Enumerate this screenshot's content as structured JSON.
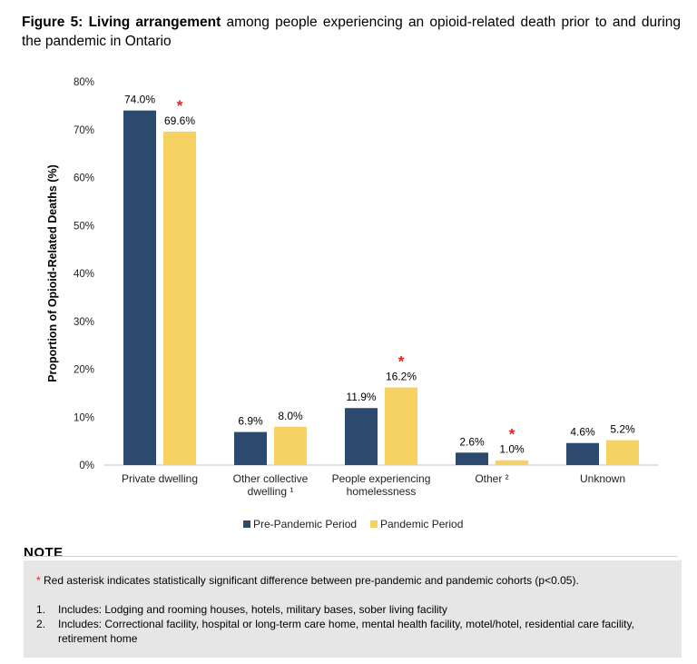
{
  "title": {
    "figure": "Figure 5:",
    "bold": "Living arrangement",
    "rest": "among people experiencing an opioid-related death prior to and during the pandemic in Ontario"
  },
  "colors": {
    "pre": "#2b4a6e",
    "pandemic": "#f5d262",
    "asterisk": "#e02020"
  },
  "chart_data": {
    "type": "bar",
    "categories": [
      [
        "Private dwelling"
      ],
      [
        "Other collective",
        "dwelling ¹"
      ],
      [
        "People experiencing",
        "homelessness"
      ],
      [
        "Other ²"
      ],
      [
        "Unknown"
      ]
    ],
    "series": [
      {
        "name": "Pre-Pandemic Period",
        "values": [
          74.0,
          6.9,
          11.9,
          2.6,
          4.6
        ],
        "labels": [
          "74.0%",
          "6.9%",
          "11.9%",
          "2.6%",
          "4.6%"
        ]
      },
      {
        "name": "Pandemic Period",
        "values": [
          69.6,
          8.0,
          16.2,
          1.0,
          5.2
        ],
        "labels": [
          "69.6%",
          "8.0%",
          "16.2%",
          "1.0%",
          "5.2%"
        ]
      }
    ],
    "significant": [
      true,
      false,
      true,
      true,
      false
    ],
    "asterisk": "*",
    "ylabel": "Proportion of Opioid-Related Deaths (%)",
    "ylim": [
      0,
      80
    ],
    "yticks": [
      0,
      10,
      20,
      30,
      40,
      50,
      60,
      70,
      80
    ],
    "ytick_labels": [
      "0%",
      "10%",
      "20%",
      "30%",
      "40%",
      "50%",
      "60%",
      "70%",
      "80%"
    ],
    "legend_position": "bottom"
  },
  "note": {
    "heading": "NOTE",
    "asterisk": "*",
    "asterisk_text": "Red asterisk indicates statistically significant difference between pre-pandemic and pandemic cohorts (p<0.05).",
    "items": [
      {
        "num": "1.",
        "text": "Includes: Lodging and rooming houses, hotels, military bases, sober living facility"
      },
      {
        "num": "2.",
        "text": "Includes: Correctional facility, hospital or long-term care home, mental health facility, motel/hotel, residential care facility, retirement home"
      }
    ]
  }
}
